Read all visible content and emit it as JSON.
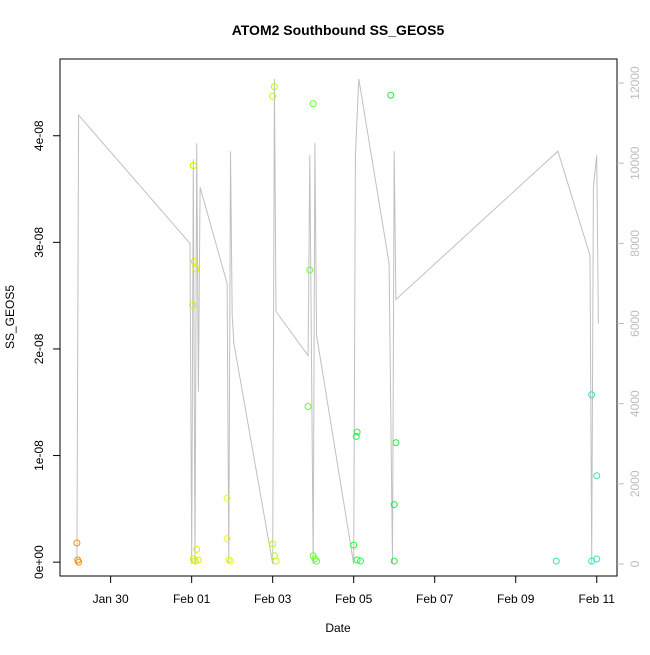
{
  "chart_data": {
    "type": "scatter",
    "title": "ATOM2 Southbound SS_GEOS5",
    "xlabel": "Date",
    "ylabel": "SS_GEOS5",
    "x_ticks": [
      "Jan 30",
      "Feb 01",
      "Feb 03",
      "Feb 05",
      "Feb 07",
      "Feb 09",
      "Feb 11"
    ],
    "y_ticks": [
      "0e+00",
      "1e-08",
      "2e-08",
      "3e-08",
      "4e-08"
    ],
    "y2_ticks": [
      "0",
      "2000",
      "4000",
      "6000",
      "8000",
      "10000",
      "12000"
    ],
    "xlim": [
      "2017-01-28T18:00",
      "2017-02-11T12:00"
    ],
    "ylim": [
      -1.3e-09,
      4.72e-08
    ],
    "y2lim": [
      -300,
      12600
    ],
    "grid": false,
    "series": [
      {
        "kind": "points",
        "values": [
          {
            "x": "2017-01-29T04:00",
            "y": 1.8e-09,
            "color": "#ff8c00"
          },
          {
            "x": "2017-01-29T04:30",
            "y": 2e-10,
            "color": "#ff8c00"
          },
          {
            "x": "2017-01-29T05:00",
            "y": 0.0,
            "color": "#ff8c00"
          },
          {
            "x": "2017-02-01T00:30",
            "y": 2.41e-08,
            "color": "#d8ee00"
          },
          {
            "x": "2017-02-01T01:00",
            "y": 3.72e-08,
            "color": "#d8ee00"
          },
          {
            "x": "2017-02-01T01:30",
            "y": 2.82e-08,
            "color": "#d8ee00"
          },
          {
            "x": "2017-02-01T02:30",
            "y": 2.75e-08,
            "color": "#d8ee00"
          },
          {
            "x": "2017-02-01T03:00",
            "y": 1.2e-09,
            "color": "#d8ee00"
          },
          {
            "x": "2017-02-01T01:00",
            "y": 3e-10,
            "color": "#d8ee00"
          },
          {
            "x": "2017-02-01T02:00",
            "y": 1e-10,
            "color": "#d8ee00"
          },
          {
            "x": "2017-02-01T04:00",
            "y": 2e-10,
            "color": "#d8ee00"
          },
          {
            "x": "2017-02-01T21:00",
            "y": 6e-09,
            "color": "#e6ff00"
          },
          {
            "x": "2017-02-01T21:00",
            "y": 2.2e-09,
            "color": "#e6ff00"
          },
          {
            "x": "2017-02-01T22:00",
            "y": 2e-10,
            "color": "#e6ff00"
          },
          {
            "x": "2017-02-01T23:00",
            "y": 1e-10,
            "color": "#e6ff00"
          },
          {
            "x": "2017-02-03T00:00",
            "y": 4.37e-08,
            "color": "#b8ff00"
          },
          {
            "x": "2017-02-03T01:00",
            "y": 4.46e-08,
            "color": "#b8ff00"
          },
          {
            "x": "2017-02-03T00:00",
            "y": 1.7e-09,
            "color": "#b8ff00"
          },
          {
            "x": "2017-02-03T01:00",
            "y": 6e-10,
            "color": "#b8ff00"
          },
          {
            "x": "2017-02-03T02:00",
            "y": 1e-10,
            "color": "#b8ff00"
          },
          {
            "x": "2017-02-03T21:00",
            "y": 1.46e-08,
            "color": "#66ff33"
          },
          {
            "x": "2017-02-03T22:00",
            "y": 2.74e-08,
            "color": "#66ff33"
          },
          {
            "x": "2017-02-04T00:00",
            "y": 4.3e-08,
            "color": "#66ff33"
          },
          {
            "x": "2017-02-04T00:00",
            "y": 6e-10,
            "color": "#66ff33"
          },
          {
            "x": "2017-02-04T01:00",
            "y": 3e-10,
            "color": "#66ff33"
          },
          {
            "x": "2017-02-04T02:00",
            "y": 1e-10,
            "color": "#66ff33"
          },
          {
            "x": "2017-02-05T00:00",
            "y": 1.6e-09,
            "color": "#22f540"
          },
          {
            "x": "2017-02-05T01:30",
            "y": 1.18e-08,
            "color": "#22f540"
          },
          {
            "x": "2017-02-05T02:00",
            "y": 1.22e-08,
            "color": "#22f540"
          },
          {
            "x": "2017-02-05T02:00",
            "y": 2e-10,
            "color": "#22f540"
          },
          {
            "x": "2017-02-05T04:00",
            "y": 1e-10,
            "color": "#22f540"
          },
          {
            "x": "2017-02-05T22:00",
            "y": 4.38e-08,
            "color": "#1ee84a"
          },
          {
            "x": "2017-02-06T00:00",
            "y": 5.4e-09,
            "color": "#1ee84a"
          },
          {
            "x": "2017-02-06T01:00",
            "y": 1.12e-08,
            "color": "#1ee84a"
          },
          {
            "x": "2017-02-06T00:00",
            "y": 1e-10,
            "color": "#1ee84a"
          },
          {
            "x": "2017-02-10T00:00",
            "y": 1e-10,
            "color": "#22e8a8"
          },
          {
            "x": "2017-02-10T21:00",
            "y": 1.57e-08,
            "color": "#22e8c0"
          },
          {
            "x": "2017-02-11T00:00",
            "y": 8.1e-09,
            "color": "#22e8c0"
          },
          {
            "x": "2017-02-10T21:00",
            "y": 1e-10,
            "color": "#22e8c0"
          },
          {
            "x": "2017-02-11T00:00",
            "y": 3e-10,
            "color": "#22e8c0"
          }
        ]
      },
      {
        "kind": "line-secondary-axis",
        "color": "#c0c0c0",
        "values": [
          {
            "x": "2017-01-29T04:00",
            "y2": 0
          },
          {
            "x": "2017-01-29T05:00",
            "y2": 11200
          },
          {
            "x": "2017-01-31T23:00",
            "y2": 8000
          },
          {
            "x": "2017-02-01T00:00",
            "y2": 0
          },
          {
            "x": "2017-02-01T01:00",
            "y2": 10100
          },
          {
            "x": "2017-02-01T02:00",
            "y2": 0
          },
          {
            "x": "2017-02-01T03:00",
            "y2": 10500
          },
          {
            "x": "2017-02-01T04:00",
            "y2": 4300
          },
          {
            "x": "2017-02-01T05:00",
            "y2": 9400
          },
          {
            "x": "2017-02-01T21:00",
            "y2": 7000
          },
          {
            "x": "2017-02-01T22:00",
            "y2": 0
          },
          {
            "x": "2017-02-01T23:00",
            "y2": 10300
          },
          {
            "x": "2017-02-02T00:00",
            "y2": 6200
          },
          {
            "x": "2017-02-02T01:00",
            "y2": 5500
          },
          {
            "x": "2017-02-03T00:00",
            "y2": 0
          },
          {
            "x": "2017-02-03T01:00",
            "y2": 12100
          },
          {
            "x": "2017-02-03T02:00",
            "y2": 6300
          },
          {
            "x": "2017-02-03T21:00",
            "y2": 5200
          },
          {
            "x": "2017-02-03T22:00",
            "y2": 10200
          },
          {
            "x": "2017-02-04T00:00",
            "y2": 0
          },
          {
            "x": "2017-02-04T01:00",
            "y2": 10500
          },
          {
            "x": "2017-02-04T02:00",
            "y2": 5700
          },
          {
            "x": "2017-02-05T00:00",
            "y2": 0
          },
          {
            "x": "2017-02-05T01:00",
            "y2": 10200
          },
          {
            "x": "2017-02-05T03:00",
            "y2": 12100
          },
          {
            "x": "2017-02-05T21:00",
            "y2": 7500
          },
          {
            "x": "2017-02-05T23:00",
            "y2": 0
          },
          {
            "x": "2017-02-06T00:00",
            "y2": 10300
          },
          {
            "x": "2017-02-06T01:00",
            "y2": 6600
          },
          {
            "x": "2017-02-10T01:00",
            "y2": 10300
          },
          {
            "x": "2017-02-10T20:00",
            "y2": 7700
          },
          {
            "x": "2017-02-10T21:00",
            "y2": 0
          },
          {
            "x": "2017-02-10T22:00",
            "y2": 9400
          },
          {
            "x": "2017-02-11T00:00",
            "y2": 10200
          },
          {
            "x": "2017-02-11T01:00",
            "y2": 6000
          }
        ]
      }
    ]
  }
}
